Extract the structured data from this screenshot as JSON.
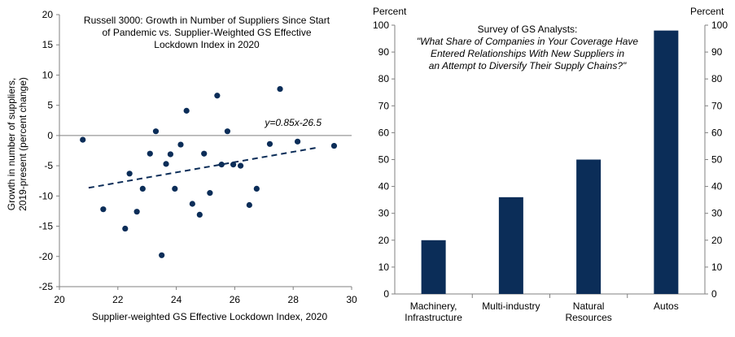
{
  "chart_data": [
    {
      "type": "scatter",
      "title": [
        "Russell 3000: Growth in Number of Suppliers Since Start",
        "of Pandemic vs. Supplier-Weighted GS Effective",
        "Lockdown Index in 2020"
      ],
      "xlabel": "Supplier-weighted GS Effective Lockdown Index, 2020",
      "ylabel": [
        "Growth in number of suppliers,",
        "2019-present (percent change)"
      ],
      "xlim": [
        20,
        30
      ],
      "ylim": [
        -25,
        20
      ],
      "x_ticks": [
        20,
        22,
        24,
        26,
        28,
        30
      ],
      "y_ticks": [
        20,
        15,
        10,
        5,
        0,
        -5,
        -10,
        -15,
        -20,
        -25
      ],
      "trendline": {
        "label": "y=0.85x-26.5",
        "slope": 0.85,
        "intercept": -26.5,
        "x_range": [
          21,
          28.9
        ]
      },
      "points": [
        {
          "x": 20.8,
          "y": -0.7
        },
        {
          "x": 21.5,
          "y": -12.2
        },
        {
          "x": 22.25,
          "y": -15.4
        },
        {
          "x": 22.4,
          "y": -6.3
        },
        {
          "x": 22.65,
          "y": -12.6
        },
        {
          "x": 22.85,
          "y": -8.8
        },
        {
          "x": 23.1,
          "y": -3.0
        },
        {
          "x": 23.3,
          "y": 0.7
        },
        {
          "x": 23.5,
          "y": -19.8
        },
        {
          "x": 23.65,
          "y": -4.7
        },
        {
          "x": 23.8,
          "y": -3.1
        },
        {
          "x": 23.95,
          "y": -8.8
        },
        {
          "x": 24.15,
          "y": -1.5
        },
        {
          "x": 24.35,
          "y": 4.1
        },
        {
          "x": 24.55,
          "y": -11.3
        },
        {
          "x": 24.8,
          "y": -13.1
        },
        {
          "x": 24.95,
          "y": -3.0
        },
        {
          "x": 25.15,
          "y": -9.5
        },
        {
          "x": 25.4,
          "y": 6.6
        },
        {
          "x": 25.55,
          "y": -4.8
        },
        {
          "x": 25.75,
          "y": 0.7
        },
        {
          "x": 25.95,
          "y": -4.8
        },
        {
          "x": 26.2,
          "y": -5.0
        },
        {
          "x": 26.5,
          "y": -11.5
        },
        {
          "x": 26.75,
          "y": -8.8
        },
        {
          "x": 27.2,
          "y": -1.4
        },
        {
          "x": 27.55,
          "y": 7.7
        },
        {
          "x": 28.15,
          "y": -1.0
        },
        {
          "x": 29.4,
          "y": -1.7
        }
      ]
    },
    {
      "type": "bar",
      "title": [
        "Survey of GS Analysts:",
        "\"What Share of Companies in Your Coverage Have",
        "Entered Relationships With New Suppliers in",
        "an Attempt to Diversify Their Supply Chains?\""
      ],
      "ylabel_left": "Percent",
      "ylabel_right": "Percent",
      "ylim": [
        0,
        100
      ],
      "y_ticks": [
        100,
        90,
        80,
        70,
        60,
        50,
        40,
        30,
        20,
        10,
        0
      ],
      "categories": [
        [
          "Machinery,",
          "Infrastructure"
        ],
        [
          "Multi-industry"
        ],
        [
          "Natural",
          "Resources"
        ],
        [
          "Autos"
        ]
      ],
      "values": [
        20,
        36,
        50,
        98
      ],
      "bar_color": "#0b2d58"
    }
  ],
  "colors": {
    "accent": "#0b2d58",
    "axis": "#808080",
    "zero_line": "#7f7f7f"
  }
}
